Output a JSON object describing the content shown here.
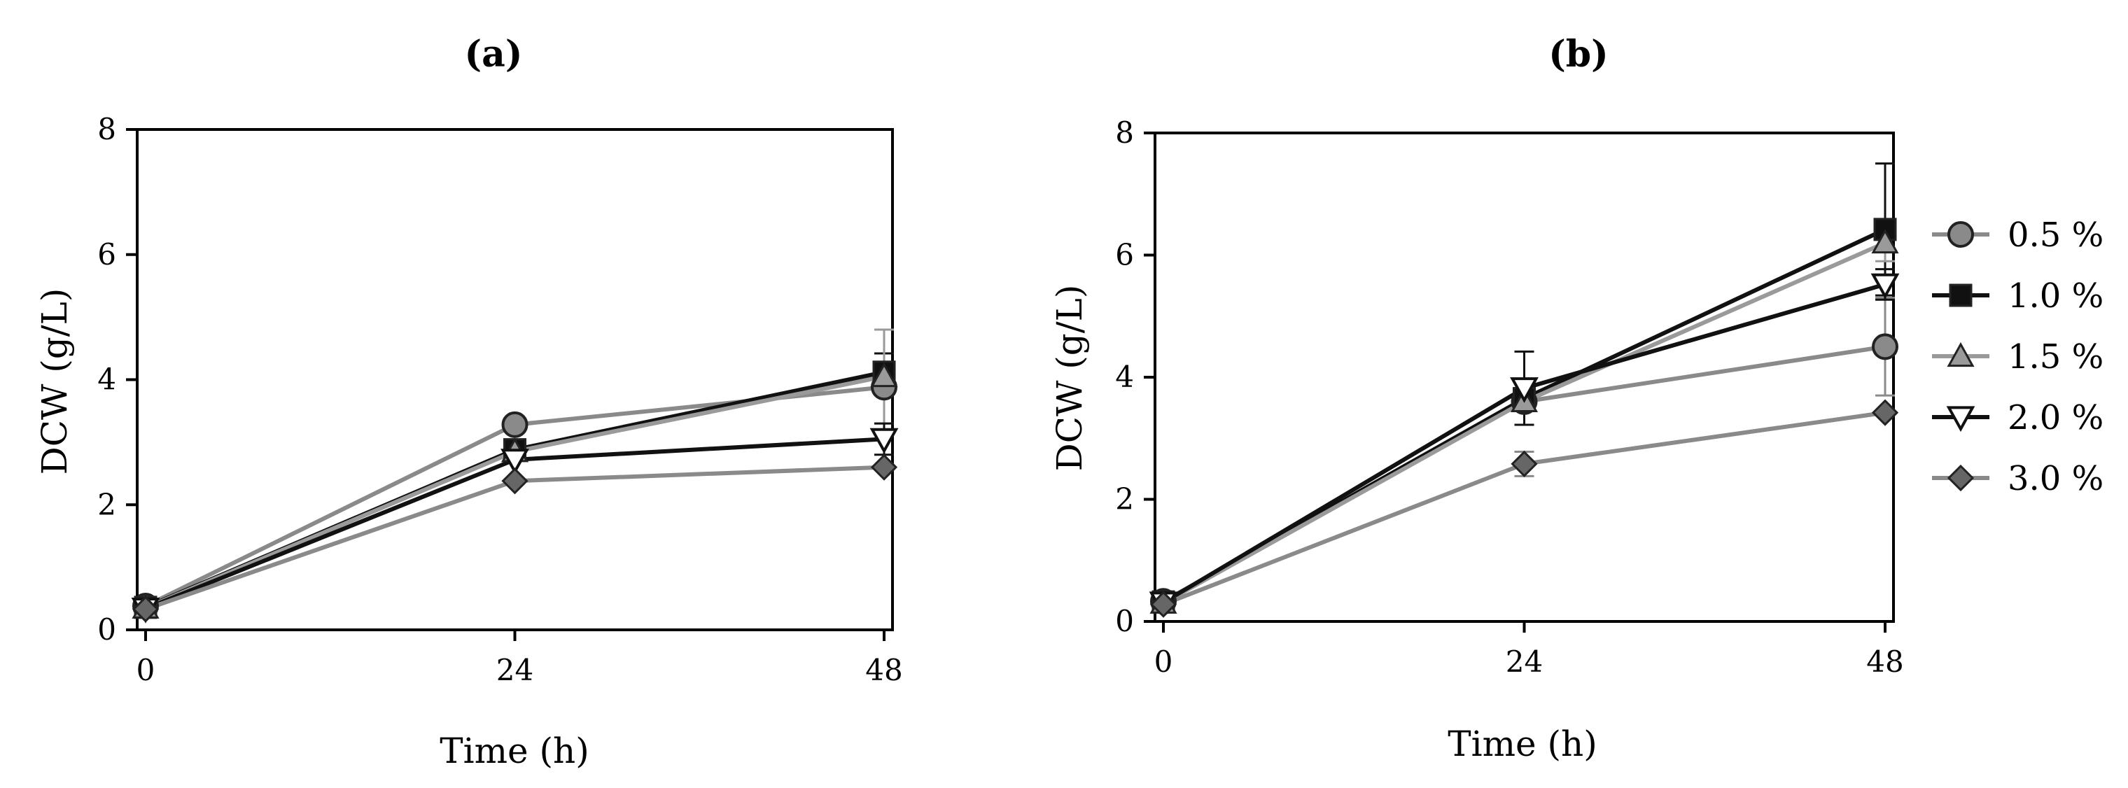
{
  "chart_data": [
    {
      "panel_label": "(a)",
      "type": "line",
      "xlabel": "Time (h)",
      "ylabel": "DCW (g/L)",
      "xlim": [
        0,
        48
      ],
      "ylim": [
        0,
        8
      ],
      "xticks": [
        "0",
        "24",
        "48"
      ],
      "yticks": [
        "0",
        "2",
        "4",
        "6",
        "8"
      ],
      "grid": false,
      "x": [
        0,
        24,
        48
      ],
      "series": [
        {
          "name": "0.5 %",
          "values": [
            0.38,
            3.28,
            3.88
          ],
          "errors": [
            0.05,
            0.08,
            0.12
          ],
          "color": "#8a8a8a",
          "marker": "circle",
          "marker_fill": "#8a8a8a"
        },
        {
          "name": "1.0 %",
          "values": [
            0.36,
            2.88,
            4.12
          ],
          "errors": [
            0.04,
            0.06,
            0.3
          ],
          "color": "#111111",
          "marker": "square",
          "marker_fill": "#111111"
        },
        {
          "name": "1.5 %",
          "values": [
            0.35,
            2.85,
            4.05
          ],
          "errors": [
            0.04,
            0.06,
            0.75
          ],
          "color": "#9a9a9a",
          "marker": "triangle-up",
          "marker_fill": "#9a9a9a"
        },
        {
          "name": "2.0 %",
          "values": [
            0.34,
            2.72,
            3.05
          ],
          "errors": [
            0.04,
            0.06,
            0.25
          ],
          "color": "#111111",
          "marker": "triangle-down",
          "marker_fill": "#ffffff"
        },
        {
          "name": "3.0 %",
          "values": [
            0.33,
            2.38,
            2.6
          ],
          "errors": [
            0.03,
            0.05,
            0.05
          ],
          "color": "#8a8a8a",
          "marker": "diamond",
          "marker_fill": "#666666"
        }
      ]
    },
    {
      "panel_label": "(b)",
      "type": "line",
      "xlabel": "Time (h)",
      "ylabel": "DCW (g/L)",
      "xlim": [
        0,
        48
      ],
      "ylim": [
        0,
        8
      ],
      "xticks": [
        "0",
        "24",
        "48"
      ],
      "yticks": [
        "0",
        "2",
        "4",
        "6",
        "8"
      ],
      "grid": false,
      "x": [
        0,
        24,
        48
      ],
      "series": [
        {
          "name": "0.5 %",
          "values": [
            0.33,
            3.6,
            4.5
          ],
          "errors": [
            0.05,
            0.15,
            0.8
          ],
          "color": "#8a8a8a",
          "marker": "circle",
          "marker_fill": "#8a8a8a"
        },
        {
          "name": "1.0 %",
          "values": [
            0.32,
            3.65,
            6.42
          ],
          "errors": [
            0.04,
            0.15,
            1.08
          ],
          "color": "#111111",
          "marker": "square",
          "marker_fill": "#111111"
        },
        {
          "name": "1.5 %",
          "values": [
            0.3,
            3.6,
            6.2
          ],
          "errors": [
            0.04,
            0.15,
            0.3
          ],
          "color": "#9a9a9a",
          "marker": "triangle-up",
          "marker_fill": "#9a9a9a"
        },
        {
          "name": "2.0 %",
          "values": [
            0.31,
            3.82,
            5.52
          ],
          "errors": [
            0.04,
            0.6,
            0.25
          ],
          "color": "#111111",
          "marker": "triangle-down",
          "marker_fill": "#ffffff"
        },
        {
          "name": "3.0 %",
          "values": [
            0.28,
            2.58,
            3.42
          ],
          "errors": [
            0.03,
            0.2,
            0.05
          ],
          "color": "#8a8a8a",
          "marker": "diamond",
          "marker_fill": "#666666"
        }
      ]
    }
  ],
  "legend": {
    "placement": "right",
    "items": [
      {
        "label": "0.5 %",
        "color": "#8a8a8a",
        "marker": "circle",
        "marker_fill": "#8a8a8a"
      },
      {
        "label": "1.0 %",
        "color": "#111111",
        "marker": "square",
        "marker_fill": "#111111"
      },
      {
        "label": "1.5 %",
        "color": "#9a9a9a",
        "marker": "triangle-up",
        "marker_fill": "#9a9a9a"
      },
      {
        "label": "2.0 %",
        "color": "#111111",
        "marker": "triangle-down",
        "marker_fill": "#ffffff"
      },
      {
        "label": "3.0 %",
        "color": "#8a8a8a",
        "marker": "diamond",
        "marker_fill": "#666666"
      }
    ]
  }
}
